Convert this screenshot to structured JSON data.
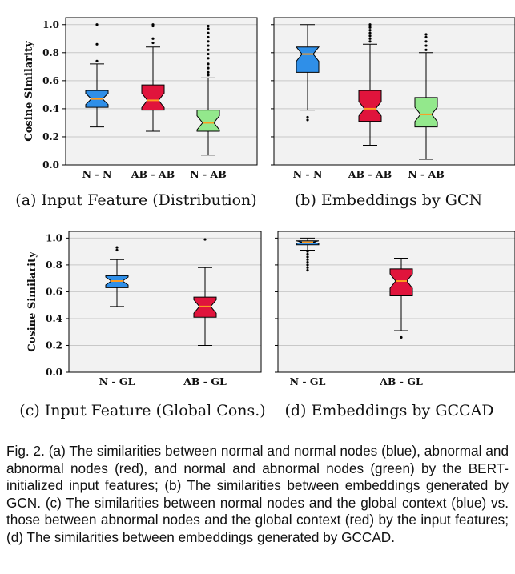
{
  "chart_data": [
    {
      "id": "a",
      "type": "boxplot",
      "ylabel": "Cosine Similarity",
      "ylim": [
        0,
        1.05
      ],
      "yticks": [
        "0.0",
        "0.2",
        "0.4",
        "0.6",
        "0.8",
        "1.0"
      ],
      "grid": true,
      "categories": [
        "N - N",
        "AB - AB",
        "N - AB"
      ],
      "boxes": [
        {
          "category": "N - N",
          "color": "#2f8fe8",
          "whisker_low": 0.27,
          "q1": 0.41,
          "median": 0.47,
          "q3": 0.53,
          "whisker_high": 0.72,
          "outliers": [
            0.74,
            0.86,
            1.0
          ]
        },
        {
          "category": "AB - AB",
          "color": "#e0143c",
          "whisker_low": 0.24,
          "q1": 0.39,
          "median": 0.46,
          "q3": 0.57,
          "whisker_high": 0.84,
          "outliers": [
            0.87,
            0.9,
            0.99,
            1.0
          ]
        },
        {
          "category": "N - AB",
          "color": "#93e88c",
          "whisker_low": 0.07,
          "q1": 0.24,
          "median": 0.3,
          "q3": 0.39,
          "whisker_high": 0.62,
          "outliers": [
            0.64,
            0.66,
            0.69,
            0.72,
            0.76,
            0.79,
            0.82,
            0.85,
            0.88,
            0.91,
            0.94,
            0.97,
            0.99
          ]
        }
      ]
    },
    {
      "id": "b",
      "type": "boxplot",
      "ylim": [
        0,
        1.05
      ],
      "grid": true,
      "categories": [
        "N - N",
        "AB - AB",
        "N - AB"
      ],
      "boxes": [
        {
          "category": "N - N",
          "color": "#2f8fe8",
          "whisker_low": 0.39,
          "q1": 0.66,
          "median": 0.79,
          "q3": 0.84,
          "whisker_high": 1.0,
          "outliers": [
            0.32,
            0.34
          ]
        },
        {
          "category": "AB - AB",
          "color": "#e0143c",
          "whisker_low": 0.14,
          "q1": 0.31,
          "median": 0.4,
          "q3": 0.53,
          "whisker_high": 0.86,
          "outliers": [
            0.88,
            0.9,
            0.92,
            0.94,
            0.96,
            0.98,
            1.0
          ]
        },
        {
          "category": "N - AB",
          "color": "#93e88c",
          "whisker_low": 0.04,
          "q1": 0.27,
          "median": 0.36,
          "q3": 0.48,
          "whisker_high": 0.8,
          "outliers": [
            0.82,
            0.85,
            0.88,
            0.91,
            0.93
          ]
        }
      ]
    },
    {
      "id": "c",
      "type": "boxplot",
      "ylabel": "Cosine Similarity",
      "ylim": [
        0,
        1.05
      ],
      "yticks": [
        "0.0",
        "0.2",
        "0.4",
        "0.6",
        "0.8",
        "1.0"
      ],
      "grid": true,
      "categories": [
        "N - GL",
        "AB - GL"
      ],
      "boxes": [
        {
          "category": "N - GL",
          "color": "#2f8fe8",
          "whisker_low": 0.49,
          "q1": 0.63,
          "median": 0.68,
          "q3": 0.72,
          "whisker_high": 0.84,
          "outliers": [
            0.91,
            0.93
          ]
        },
        {
          "category": "AB - GL",
          "color": "#e0143c",
          "whisker_low": 0.2,
          "q1": 0.41,
          "median": 0.49,
          "q3": 0.56,
          "whisker_high": 0.78,
          "outliers": [
            0.99
          ]
        }
      ]
    },
    {
      "id": "d",
      "type": "boxplot",
      "ylim": [
        0,
        1.05
      ],
      "grid": true,
      "categories": [
        "N - GL",
        "AB - GL"
      ],
      "boxes": [
        {
          "category": "N - GL",
          "color": "#2f8fe8",
          "whisker_low": 0.91,
          "q1": 0.95,
          "median": 0.97,
          "q3": 0.98,
          "whisker_high": 1.0,
          "outliers": [
            0.76,
            0.78,
            0.8,
            0.82,
            0.84,
            0.86,
            0.88,
            0.9
          ]
        },
        {
          "category": "AB - GL",
          "color": "#e0143c",
          "whisker_low": 0.31,
          "q1": 0.57,
          "median": 0.68,
          "q3": 0.77,
          "whisker_high": 0.85,
          "outliers": [
            0.26
          ]
        }
      ]
    }
  ],
  "captions": {
    "a": "(a) Input Feature (Distribution)",
    "b": "(b) Embeddings by GCN",
    "c": "(c) Input Feature (Global Cons.)",
    "d": "(d) Embeddings by GCCAD"
  },
  "figure_caption": "Fig. 2.  (a) The similarities between normal and normal nodes (blue), abnormal and abnormal nodes (red), and normal and abnormal nodes (green) by the BERT-initialized input features; (b) The similarities between embeddings generated by GCN. (c) The similarities between normal nodes and the global context (blue) vs. those between abnormal nodes and the global context (red) by the input features; (d) The similarities between embeddings generated by GCCAD.",
  "colors": {
    "background": "#f2f2f2",
    "grid": "#c8c8c8",
    "median": "#ff9a1f"
  }
}
